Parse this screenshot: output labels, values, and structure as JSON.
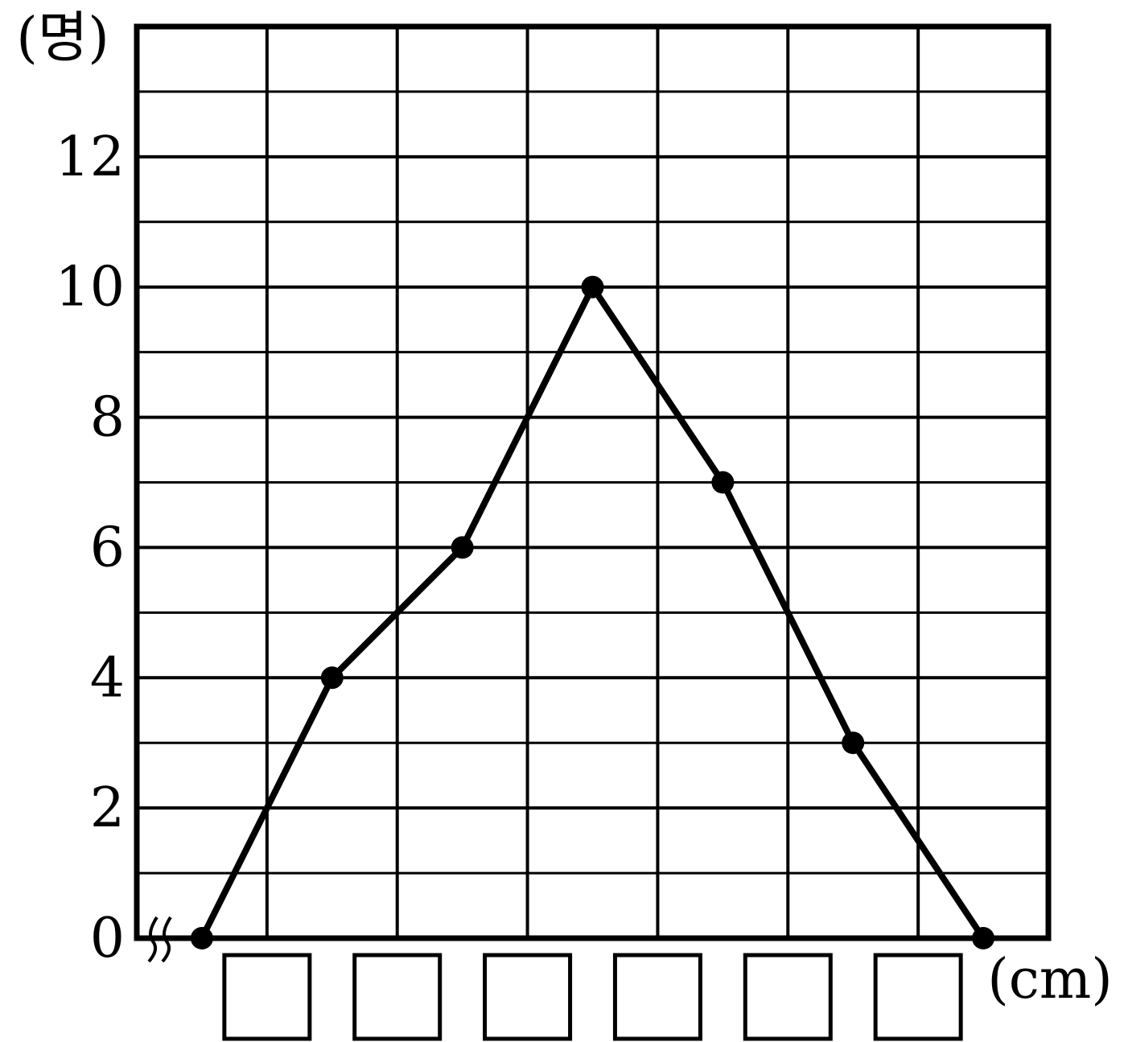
{
  "chart_data": {
    "type": "line",
    "ylabel": "(명)",
    "xlabel": "(cm)",
    "ylim": [
      0,
      14
    ],
    "y_ticks": [
      0,
      2,
      4,
      6,
      8,
      10,
      12
    ],
    "y_tick_labels": [
      "0",
      "2",
      "4",
      "6",
      "8",
      "10",
      "12"
    ],
    "y_minor_step": 1,
    "x_units": [
      0.5,
      1.5,
      2.5,
      3.5,
      4.5,
      5.5,
      6.5
    ],
    "series": [
      {
        "values": [
          0,
          4,
          6,
          10,
          7,
          3,
          0
        ]
      }
    ],
    "x_tick_labels": [
      "",
      "",
      "",
      "",
      "",
      ""
    ],
    "axis_break": true,
    "grid": true,
    "line_color": "#000000"
  }
}
